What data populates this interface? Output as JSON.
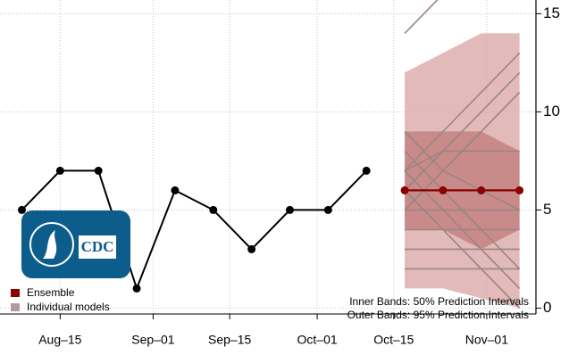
{
  "chart_data": {
    "type": "line",
    "xlim": [
      "08-04",
      "11-10"
    ],
    "ylim": [
      -0.3,
      15.7
    ],
    "yticks": [
      0,
      5,
      10,
      15
    ],
    "xticks": [
      {
        "value": "08-15",
        "label": "Aug–15"
      },
      {
        "value": "09-01",
        "label": "Sep–01"
      },
      {
        "value": "09-15",
        "label": "Sep–15"
      },
      {
        "value": "10-01",
        "label": "Oct–01"
      },
      {
        "value": "10-15",
        "label": "Oct–15"
      },
      {
        "value": "11-01",
        "label": "Nov–01"
      }
    ],
    "grid": true,
    "observed": {
      "color": "#000000",
      "x": [
        "08-08",
        "08-15",
        "08-22",
        "08-29",
        "09-05",
        "09-12",
        "09-19",
        "09-26",
        "10-03",
        "10-10"
      ],
      "values": [
        5,
        7,
        7,
        1,
        6,
        5,
        3,
        5,
        5,
        7
      ]
    },
    "bands": [
      {
        "label": "Outer Bands: 95% Prediction Intervals",
        "color": "#d9a3a3",
        "x": [
          "10-17",
          "10-24",
          "10-31",
          "11-07"
        ],
        "lower": [
          1,
          1,
          0.5,
          0
        ],
        "upper": [
          12,
          13,
          14,
          14
        ]
      },
      {
        "label": "Inner Bands: 50% Prediction Intervals",
        "color": "#c07a7a",
        "x": [
          "10-17",
          "10-24",
          "10-31",
          "11-07"
        ],
        "lower": [
          4,
          4,
          3,
          4
        ],
        "upper": [
          9,
          9,
          9,
          8
        ]
      }
    ],
    "models": {
      "name": "Individual models",
      "color": "#9a8585",
      "x": [
        "10-17",
        "10-24",
        "10-31",
        "11-07"
      ],
      "series": [
        [
          14,
          16,
          18,
          20
        ],
        [
          7,
          9,
          11,
          13
        ],
        [
          6,
          8,
          10,
          12
        ],
        [
          7,
          8,
          8,
          8
        ],
        [
          6,
          6,
          6,
          6
        ],
        [
          5,
          5,
          5,
          5
        ],
        [
          4,
          4,
          4,
          4
        ],
        [
          2,
          2,
          2,
          2
        ],
        [
          3,
          3,
          3,
          3
        ],
        [
          9,
          7,
          6,
          5
        ],
        [
          8,
          6,
          4,
          2
        ],
        [
          6,
          4,
          2,
          0
        ],
        [
          7,
          5,
          3,
          1
        ],
        [
          5,
          7,
          9,
          11
        ]
      ]
    },
    "ensemble": {
      "name": "Ensemble",
      "color": "#8b0000",
      "x": [
        "10-17",
        "10-24",
        "10-31",
        "11-07"
      ],
      "values": [
        6,
        6,
        6,
        6
      ]
    },
    "logo_text": "CDC"
  }
}
